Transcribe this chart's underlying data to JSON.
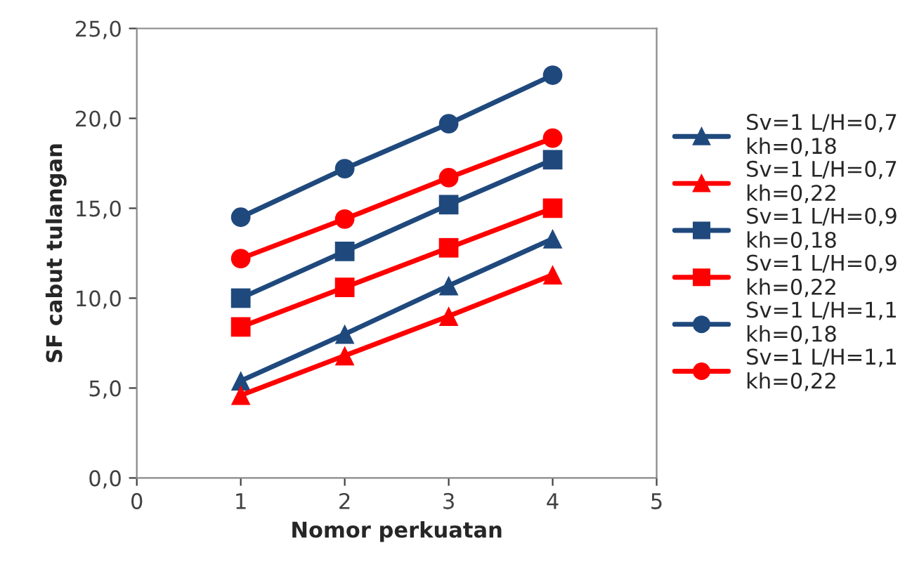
{
  "chart_data": {
    "type": "line",
    "xlabel": "Nomor perkuatan",
    "ylabel": "SF cabut tulangan",
    "x": [
      1,
      2,
      3,
      4
    ],
    "xlim": [
      0,
      5
    ],
    "xticks": [
      0,
      1,
      2,
      3,
      4,
      5
    ],
    "ylim": [
      0,
      25
    ],
    "yticks": [
      {
        "value": 0,
        "label": "0,0"
      },
      {
        "value": 5,
        "label": "5,0"
      },
      {
        "value": 10,
        "label": "10,0"
      },
      {
        "value": 15,
        "label": "15,0"
      },
      {
        "value": 20,
        "label": "20,0"
      },
      {
        "value": 25,
        "label": "25,0"
      }
    ],
    "grid": false,
    "legend": "right",
    "line_style": "solid",
    "series": [
      {
        "name": "Sv=1 L/H=0,7\nkh=0,18",
        "color": "#1f497d",
        "marker": "triangle",
        "values": [
          5.4,
          8.0,
          10.7,
          13.3
        ]
      },
      {
        "name": "Sv=1 L/H=0,7\nkh=0,22",
        "color": "#ff0000",
        "marker": "triangle",
        "values": [
          4.6,
          6.8,
          9.0,
          11.3
        ]
      },
      {
        "name": "Sv=1 L/H=0,9\nkh=0,18",
        "color": "#1f497d",
        "marker": "square",
        "values": [
          10.0,
          12.6,
          15.2,
          17.7
        ]
      },
      {
        "name": "Sv=1 L/H=0,9\nkh=0,22",
        "color": "#ff0000",
        "marker": "square",
        "values": [
          8.4,
          10.6,
          12.8,
          15.0
        ]
      },
      {
        "name": "Sv=1 L/H=1,1\nkh=0,18",
        "color": "#1f497d",
        "marker": "circle",
        "values": [
          14.5,
          17.2,
          19.7,
          22.4
        ]
      },
      {
        "name": "Sv=1 L/H=1,1\nkh=0,22",
        "color": "#ff0000",
        "marker": "circle",
        "values": [
          12.2,
          14.4,
          16.7,
          18.9
        ]
      }
    ]
  }
}
